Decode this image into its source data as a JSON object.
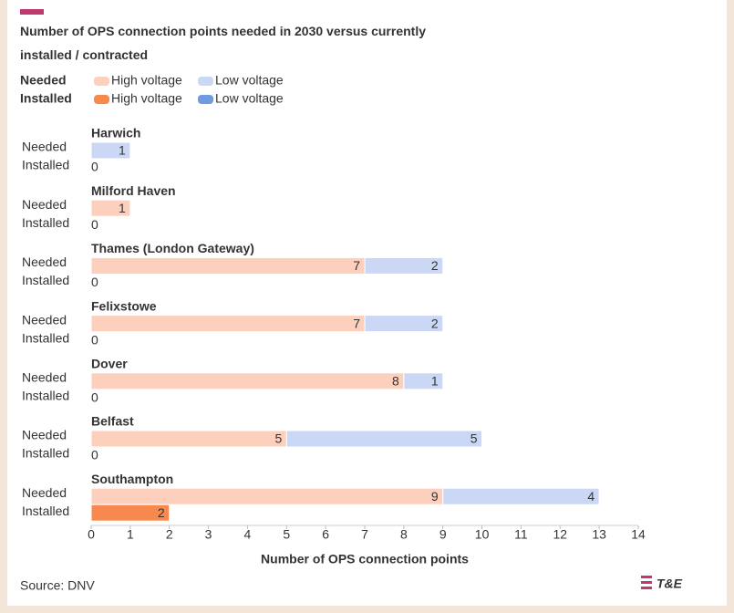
{
  "chart_data": {
    "type": "bar",
    "title": "Number of OPS connection points needed in 2030 versus currently installed / contracted",
    "categories": [
      "Harwich",
      "Milford Haven",
      "Thames (London Gateway)",
      "Felixstowe",
      "Dover",
      "Belfast",
      "Southampton"
    ],
    "groups": [
      {
        "name": "Needed",
        "series": [
          {
            "name": "High voltage",
            "color": "#fdd0bd",
            "values": [
              0,
              1,
              7,
              7,
              8,
              5,
              9
            ]
          },
          {
            "name": "Low voltage",
            "color": "#cbd8f5",
            "values": [
              1,
              0,
              2,
              2,
              1,
              5,
              4
            ]
          }
        ]
      },
      {
        "name": "Installed",
        "series": [
          {
            "name": "High voltage",
            "color": "#f7894e",
            "values": [
              0,
              0,
              0,
              0,
              0,
              0,
              2
            ]
          },
          {
            "name": "Low voltage",
            "color": "#6f9be0",
            "values": [
              0,
              0,
              0,
              0,
              0,
              0,
              0
            ]
          }
        ]
      }
    ],
    "xlim": [
      0,
      14
    ],
    "xticks": [
      0,
      1,
      2,
      3,
      4,
      5,
      6,
      7,
      8,
      9,
      10,
      11,
      12,
      13,
      14
    ],
    "xlabel": "Number of OPS connection points",
    "source": "Source: DNV",
    "logo": "T&E"
  }
}
